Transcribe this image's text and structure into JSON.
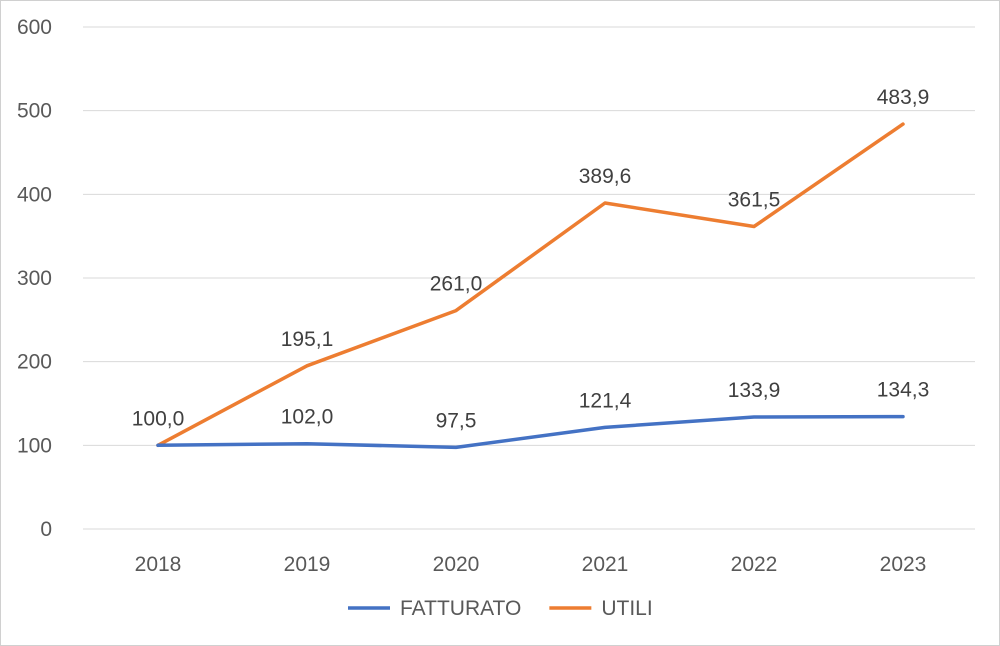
{
  "chart_data": {
    "type": "line",
    "categories": [
      "2018",
      "2019",
      "2020",
      "2021",
      "2022",
      "2023"
    ],
    "ylim": [
      0,
      600
    ],
    "yticks": [
      0,
      100,
      200,
      300,
      400,
      500,
      600
    ],
    "ytick_labels": [
      "0",
      "100",
      "200",
      "300",
      "400",
      "500",
      "600"
    ],
    "grid": true,
    "legend_position": "bottom",
    "series": [
      {
        "name": "FATTURATO",
        "color": "#4472C4",
        "values": [
          100.0,
          102.0,
          97.5,
          121.4,
          133.9,
          134.3
        ],
        "labels": [
          "100,0",
          "102,0",
          "97,5",
          "121,4",
          "133,9",
          "134,3"
        ]
      },
      {
        "name": "UTILI",
        "color": "#ED7D31",
        "values": [
          100.0,
          195.1,
          261.0,
          389.6,
          361.5,
          483.9
        ],
        "labels": [
          "",
          "195,1",
          "261,0",
          "389,6",
          "361,5",
          "483,9"
        ]
      }
    ]
  }
}
